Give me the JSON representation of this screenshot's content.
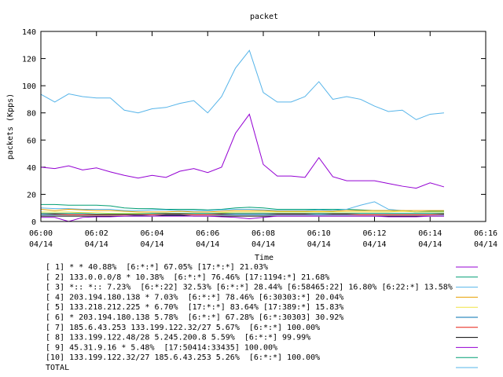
{
  "chart_data": {
    "type": "line",
    "title": "packet",
    "x_label": "Time",
    "y_label": "packets (Kpps)",
    "x": [
      0,
      0.5,
      1,
      1.5,
      2,
      2.5,
      3,
      3.5,
      4,
      4.5,
      5,
      5.5,
      6,
      6.5,
      7,
      7.5,
      8,
      8.5,
      9,
      9.5,
      10,
      10.5,
      11,
      11.5,
      12,
      12.5,
      13,
      13.5,
      14,
      14.5
    ],
    "xlim": [
      0,
      16
    ],
    "xticks": [
      {
        "value": 0,
        "label": "06:00 04/14"
      },
      {
        "value": 2,
        "label": "06:02 04/14"
      },
      {
        "value": 4,
        "label": "06:04 04/14"
      },
      {
        "value": 6,
        "label": "06:06 04/14"
      },
      {
        "value": 8,
        "label": "06:08 04/14"
      },
      {
        "value": 10,
        "label": "06:10 04/14"
      },
      {
        "value": 12,
        "label": "06:12 04/14"
      },
      {
        "value": 14,
        "label": "06:14 04/14"
      },
      {
        "value": 16,
        "label": "06:16 04/14"
      }
    ],
    "ylim": [
      0,
      140
    ],
    "yticks": [
      0,
      20,
      40,
      60,
      80,
      100,
      120,
      140
    ],
    "grid": false,
    "series": [
      {
        "name": "[ 1] * * 40.88%  [6:*:*] 67.05% [17:*:*] 21.03%",
        "color": "#9400d3",
        "values": [
          40,
          39,
          41,
          38,
          39.5,
          36.5,
          34,
          32,
          34,
          32.5,
          37,
          39,
          36,
          40,
          65,
          79,
          42,
          33.5,
          33.5,
          32.5,
          47,
          33,
          30,
          30,
          30,
          28,
          26,
          24.5,
          28.5,
          25.5
        ]
      },
      {
        "name": "[ 2] 133.0.0.0/8 * 10.38%  [6:*:*] 76.46% [17:1194:*] 21.68%",
        "color": "#009e73",
        "values": [
          12.5,
          12.5,
          12,
          12,
          12,
          11.5,
          10,
          9.5,
          9.5,
          9,
          9,
          9,
          8.5,
          9,
          10,
          10.5,
          10,
          9,
          9,
          9,
          9,
          9,
          9,
          8.5,
          8,
          8,
          8,
          7,
          7.5,
          7.5
        ]
      },
      {
        "name": "[ 3] *:: *:: 7.23%  [6:*:22] 32.53% [6:*:*] 28.44% [6:58465:22] 16.80% [6:22:*] 13.58%",
        "color": "#56b4e9",
        "values": [
          10,
          9.5,
          9.5,
          9,
          9,
          9,
          8,
          8,
          8.5,
          8.5,
          8,
          8,
          8,
          8.5,
          9,
          9,
          8.5,
          8,
          8,
          8,
          8.5,
          8,
          9,
          12,
          14.5,
          9,
          8,
          7,
          7,
          7
        ]
      },
      {
        "name": "[ 4] 203.194.180.138 * 7.03%  [6:*:*] 78.46% [6:30303:*] 20.04%",
        "color": "#e69f00",
        "values": [
          9,
          8,
          9,
          8.5,
          8,
          8,
          7.5,
          7,
          7,
          7,
          7.5,
          7,
          7,
          7.5,
          8,
          8,
          8,
          7.5,
          7.5,
          7.5,
          7.5,
          7.5,
          8,
          8,
          8,
          8,
          8,
          8,
          8,
          8
        ]
      },
      {
        "name": "[ 5] 133.218.212.225 * 6.70%  [17:*:*] 83.64% [17:389:*] 15.83%",
        "color": "#f0e442",
        "values": [
          7,
          7,
          7,
          6.5,
          6.5,
          6,
          6,
          6,
          6,
          6,
          6,
          6,
          6,
          6.5,
          7,
          7,
          7,
          7,
          7,
          7,
          7,
          7,
          7,
          7,
          7,
          7,
          7.5,
          7,
          7,
          7
        ]
      },
      {
        "name": "[ 6] * 203.194.180.138 5.78%  [6:*:*] 67.28% [6:*:30303] 30.92%",
        "color": "#0072b2",
        "values": [
          5,
          5,
          5,
          5,
          5,
          5,
          5,
          4.5,
          5,
          5,
          5,
          5,
          5,
          5,
          5,
          5,
          5,
          5,
          5,
          5,
          5,
          5,
          5,
          5,
          5,
          5,
          5,
          5,
          5,
          5
        ]
      },
      {
        "name": "[ 7] 185.6.43.253 133.199.122.32/27 5.67%  [6:*:*] 100.00%",
        "color": "#e51e10",
        "values": [
          6,
          5.5,
          5,
          5,
          5,
          5,
          5,
          5,
          5,
          5.5,
          5.5,
          5,
          5,
          5.5,
          6,
          6,
          6,
          5.5,
          5.5,
          5.5,
          6,
          5.5,
          5.5,
          5,
          5,
          5,
          5,
          5,
          5,
          5.5
        ]
      },
      {
        "name": "[ 8] 133.199.122.48/28 5.245.200.8 5.59%  [6:*:*] 99.99%",
        "color": "#000000",
        "values": [
          4,
          4,
          4,
          4,
          4,
          4,
          4,
          4,
          4,
          4.5,
          4.5,
          4,
          4,
          4,
          4,
          4,
          4,
          4,
          4,
          4,
          4,
          4,
          4,
          4,
          4,
          4,
          4,
          4,
          4,
          4
        ]
      },
      {
        "name": "[ 9] 45.31.9.16 * 5.48%  [17:50414:33435] 100.00%",
        "color": "#9400d3",
        "values": [
          3,
          3,
          0,
          3,
          3.5,
          3.5,
          4,
          4,
          4,
          4,
          4,
          4,
          4,
          3.5,
          3,
          2,
          3,
          4,
          4,
          4,
          4,
          4,
          4,
          4,
          4,
          3.5,
          3.5,
          3.5,
          4,
          4
        ]
      },
      {
        "name": "[10] 133.199.122.32/27 185.6.43.253 5.26%  [6:*:*] 100.00%",
        "color": "#009e73",
        "values": [
          6,
          6,
          6,
          6,
          5.5,
          5.5,
          5.5,
          5.5,
          6,
          6,
          6,
          6,
          6,
          6,
          6,
          6,
          6,
          6,
          6,
          6,
          6,
          6,
          6,
          6,
          6,
          6,
          6,
          6,
          6,
          6
        ]
      },
      {
        "name": "TOTAL",
        "color": "#56b4e9",
        "values": [
          93.7,
          88,
          94,
          92,
          91,
          91,
          82,
          80,
          83,
          84,
          87,
          89,
          80,
          92,
          113,
          126,
          95,
          88,
          88,
          92,
          103,
          90,
          92,
          90,
          85,
          81,
          82,
          75,
          79,
          80
        ]
      }
    ]
  }
}
